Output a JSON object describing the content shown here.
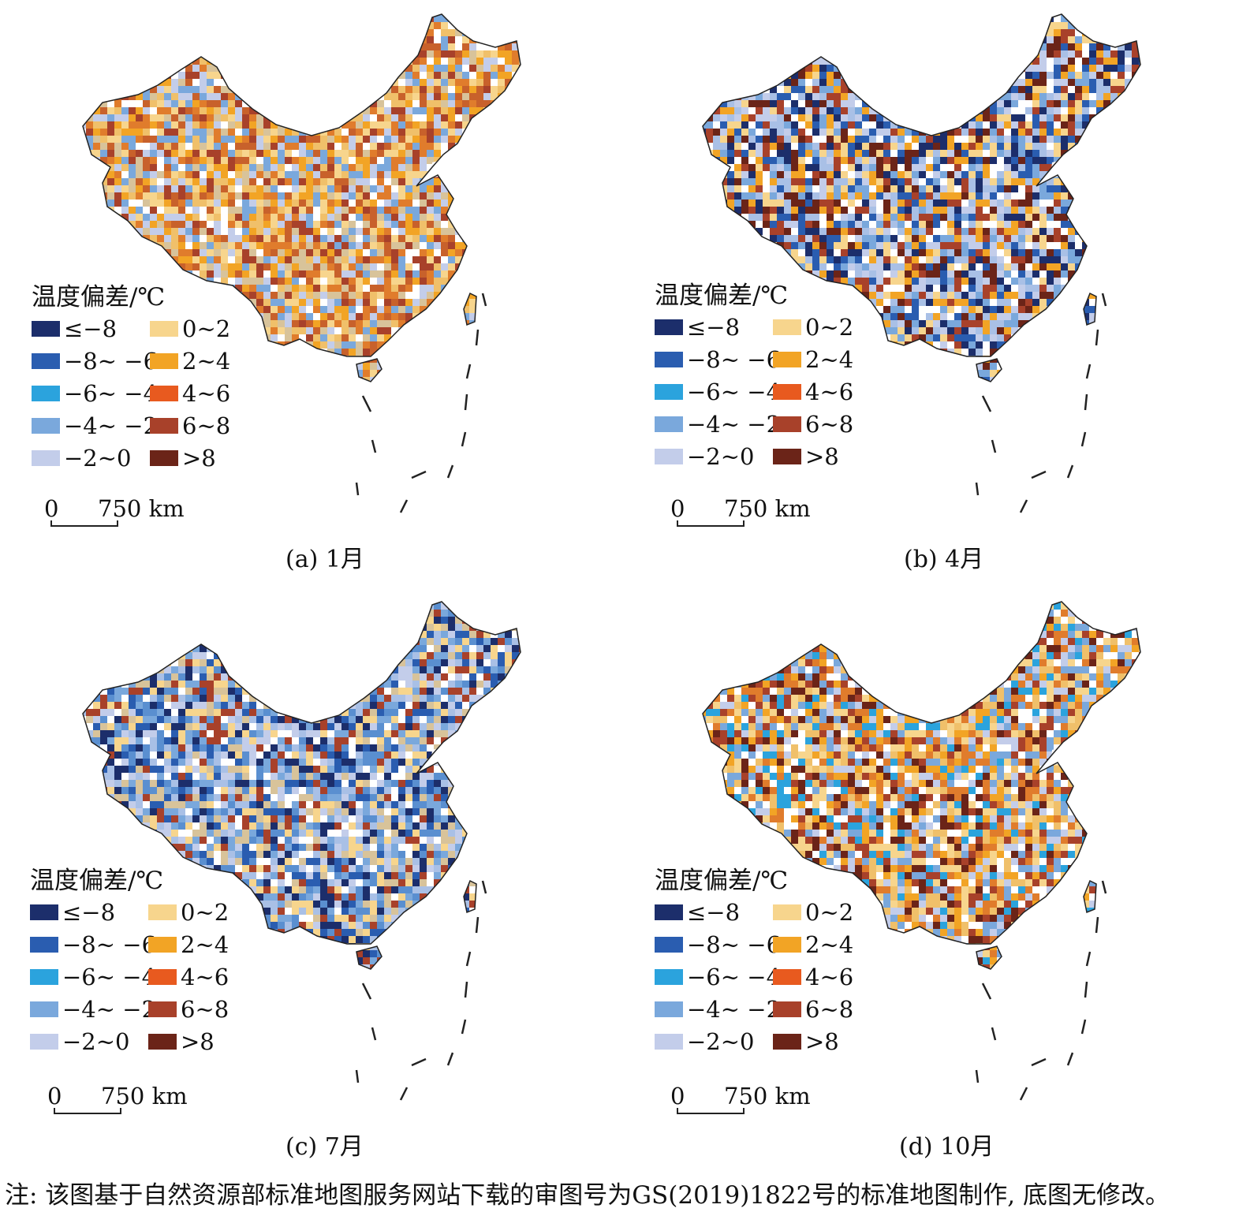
{
  "legend": {
    "title": "温度偏差/℃",
    "left_column": [
      {
        "label": "≤−8",
        "color": "#1c2e6b"
      },
      {
        "label": "−8~ −6",
        "color": "#2a5db0"
      },
      {
        "label": "−6~ −4",
        "color": "#2ba3dd"
      },
      {
        "label": "−4~ −2",
        "color": "#7aa8dc"
      },
      {
        "label": "−2~0",
        "color": "#c3cdea"
      }
    ],
    "right_column": [
      {
        "label": "0~2",
        "color": "#f7d58d"
      },
      {
        "label": "2~4",
        "color": "#f2a425"
      },
      {
        "label": "4~6",
        "color": "#e85a1f"
      },
      {
        "label": "6~8",
        "color": "#a8412a"
      },
      {
        "label": ">8",
        "color": "#6b2418"
      }
    ]
  },
  "scalebar": {
    "zero": "0",
    "distance": "750 km"
  },
  "panels": [
    {
      "id": "a",
      "caption": "(a) 1月",
      "palette": [
        "#f7d58d",
        "#f0c06a",
        "#f2a425",
        "#e07c2c",
        "#c8612b",
        "#a8412a",
        "#7aa8dc",
        "#c3cdea",
        "#d8c39a",
        "#ffffff"
      ]
    },
    {
      "id": "b",
      "caption": "(b) 4月",
      "palette": [
        "#7aa8dc",
        "#a9c0e6",
        "#c3cdea",
        "#2a5db0",
        "#1c2e6b",
        "#f7d58d",
        "#f2a425",
        "#a8412a",
        "#6b2418",
        "#ffffff"
      ]
    },
    {
      "id": "c",
      "caption": "(c) 7月",
      "palette": [
        "#7aa8dc",
        "#5a8fd0",
        "#a9c0e6",
        "#2a5db0",
        "#1c2e6b",
        "#c3cdea",
        "#f7d58d",
        "#a8412a",
        "#ffffff",
        "#d8c39a"
      ]
    },
    {
      "id": "d",
      "caption": "(d) 10月",
      "palette": [
        "#f7d58d",
        "#f0c06a",
        "#c3cdea",
        "#7aa8dc",
        "#2ba3dd",
        "#f2a425",
        "#e07c2c",
        "#a8412a",
        "#6b2418",
        "#ffffff"
      ]
    }
  ],
  "note": "注: 该图基于自然资源部标准地图服务网站下载的审图号为GS(2019)1822号的标准地图制作, 底图无修改。"
}
